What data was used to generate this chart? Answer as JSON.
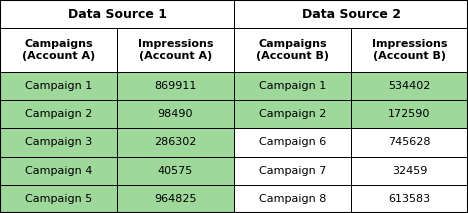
{
  "title1": "Data Source 1",
  "title2": "Data Source 2",
  "col_headers": [
    "Campaigns\n(Account A)",
    "Impressions\n(Account A)",
    "Campaigns\n(Account B)",
    "Impressions\n(Account B)"
  ],
  "rows": [
    [
      "Campaign 1",
      "869911",
      "Campaign 1",
      "534402"
    ],
    [
      "Campaign 2",
      "98490",
      "Campaign 2",
      "172590"
    ],
    [
      "Campaign 3",
      "286302",
      "Campaign 6",
      "745628"
    ],
    [
      "Campaign 4",
      "40575",
      "Campaign 7",
      "32459"
    ],
    [
      "Campaign 5",
      "964825",
      "Campaign 8",
      "613583"
    ]
  ],
  "green_cols_01_rows": [
    0,
    1,
    2,
    3,
    4
  ],
  "green_cols_23_rows": [
    0,
    1
  ],
  "green_color": "#9ED89A",
  "white_color": "#FFFFFF",
  "header_bg": "#FFFFFF",
  "border_color": "#000000",
  "title_fontsize": 9,
  "header_fontsize": 8,
  "cell_fontsize": 8,
  "fig_width": 4.68,
  "fig_height": 2.13,
  "dpi": 100
}
